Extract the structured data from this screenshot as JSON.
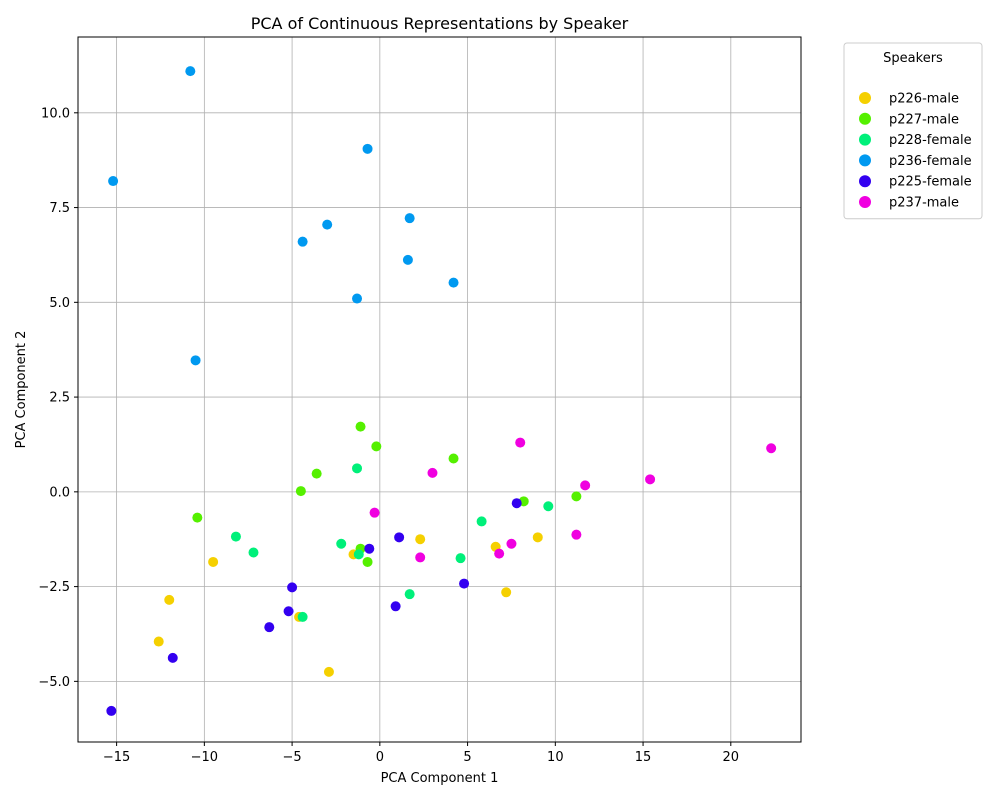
{
  "chart_data": {
    "type": "scatter",
    "title": "PCA of Continuous Representations by Speaker",
    "xlabel": "PCA Component 1",
    "ylabel": "PCA Component 2",
    "xlim": [
      -17.2,
      24.0
    ],
    "ylim": [
      -6.6,
      12.0
    ],
    "xticks": [
      -15,
      -10,
      -5,
      0,
      5,
      10,
      15,
      20
    ],
    "yticks": [
      -5.0,
      -2.5,
      0.0,
      2.5,
      5.0,
      7.5,
      10.0
    ],
    "ytick_labels": [
      "−5.0",
      "−2.5",
      "0.0",
      "2.5",
      "5.0",
      "7.5",
      "10.0"
    ],
    "xtick_labels": [
      "−15",
      "−10",
      "−5",
      "0",
      "5",
      "10",
      "15",
      "20"
    ],
    "grid": true,
    "legend": {
      "title": "Speakers",
      "placement": "outside-top-right"
    },
    "series": [
      {
        "name": "p226-male",
        "color": "#f5d000",
        "points": [
          [
            -1.5,
            -1.65
          ],
          [
            -9.5,
            -1.85
          ],
          [
            -12.0,
            -2.85
          ],
          [
            -12.6,
            -3.95
          ],
          [
            -2.9,
            -4.75
          ],
          [
            2.3,
            -1.25
          ],
          [
            6.6,
            -1.45
          ],
          [
            9.0,
            -1.2
          ],
          [
            7.2,
            -2.65
          ],
          [
            -4.6,
            -3.3
          ]
        ]
      },
      {
        "name": "p227-male",
        "color": "#55f000",
        "points": [
          [
            -1.1,
            1.72
          ],
          [
            -0.2,
            1.2
          ],
          [
            -3.6,
            0.48
          ],
          [
            -4.5,
            0.02
          ],
          [
            -10.4,
            -0.68
          ],
          [
            -1.1,
            -1.5
          ],
          [
            -0.7,
            -1.85
          ],
          [
            4.2,
            0.88
          ],
          [
            8.2,
            -0.25
          ],
          [
            11.2,
            -0.12
          ]
        ]
      },
      {
        "name": "p228-female",
        "color": "#00f07a",
        "points": [
          [
            -1.3,
            0.62
          ],
          [
            -8.2,
            -1.18
          ],
          [
            -7.2,
            -1.6
          ],
          [
            -2.2,
            -1.37
          ],
          [
            -1.2,
            -1.65
          ],
          [
            -4.4,
            -3.3
          ],
          [
            1.7,
            -2.7
          ],
          [
            4.6,
            -1.75
          ],
          [
            5.8,
            -0.78
          ],
          [
            9.6,
            -0.38
          ]
        ]
      },
      {
        "name": "p236-female",
        "color": "#0099f0",
        "points": [
          [
            -10.8,
            11.1
          ],
          [
            -15.2,
            8.2
          ],
          [
            -0.7,
            9.05
          ],
          [
            -3.0,
            7.05
          ],
          [
            -4.4,
            6.6
          ],
          [
            1.7,
            7.22
          ],
          [
            1.6,
            6.12
          ],
          [
            -1.3,
            5.1
          ],
          [
            4.2,
            5.52
          ],
          [
            -10.5,
            3.47
          ]
        ]
      },
      {
        "name": "p225-female",
        "color": "#3300f0",
        "points": [
          [
            -0.6,
            -1.5
          ],
          [
            1.1,
            -1.2
          ],
          [
            -5.0,
            -2.52
          ],
          [
            -5.2,
            -3.15
          ],
          [
            -6.3,
            -3.57
          ],
          [
            -11.8,
            -4.38
          ],
          [
            -15.3,
            -5.78
          ],
          [
            0.9,
            -3.02
          ],
          [
            4.8,
            -2.42
          ],
          [
            7.8,
            -0.3
          ]
        ]
      },
      {
        "name": "p237-male",
        "color": "#f000e0",
        "points": [
          [
            -0.3,
            -0.55
          ],
          [
            3.0,
            0.5
          ],
          [
            2.3,
            -1.73
          ],
          [
            6.8,
            -1.63
          ],
          [
            7.5,
            -1.37
          ],
          [
            8.0,
            1.3
          ],
          [
            11.2,
            -1.13
          ],
          [
            11.7,
            0.17
          ],
          [
            15.4,
            0.33
          ],
          [
            22.3,
            1.15
          ]
        ]
      }
    ]
  }
}
